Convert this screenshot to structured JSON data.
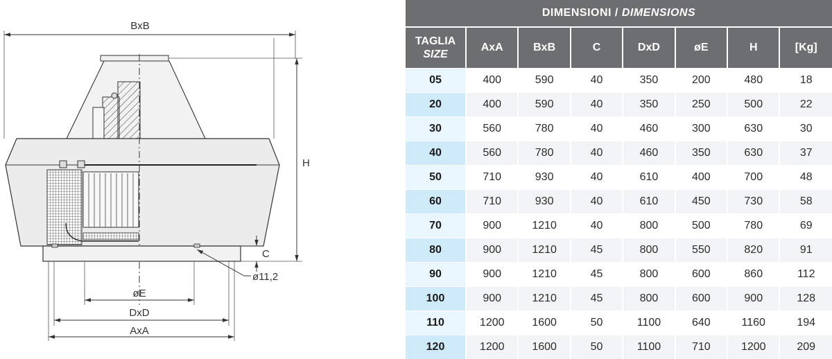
{
  "drawing": {
    "labels": {
      "bxb": "BxB",
      "h": "H",
      "c": "C",
      "hole": "ø11,2",
      "e": "øE",
      "dxd": "DxD",
      "axa": "AxA"
    }
  },
  "table": {
    "title_it": "DIMENSIONI /",
    "title_en": "DIMENSIONS",
    "size_header_it": "TAGLIA",
    "size_header_en": "SIZE",
    "columns": [
      "AxA",
      "BxB",
      "C",
      "DxD",
      "øE",
      "H",
      "[Kg]"
    ],
    "rows": [
      {
        "size": "05",
        "values": [
          "400",
          "590",
          "40",
          "350",
          "200",
          "480",
          "18"
        ]
      },
      {
        "size": "20",
        "values": [
          "400",
          "590",
          "40",
          "350",
          "250",
          "500",
          "22"
        ]
      },
      {
        "size": "30",
        "values": [
          "560",
          "780",
          "40",
          "460",
          "300",
          "630",
          "30"
        ]
      },
      {
        "size": "40",
        "values": [
          "560",
          "780",
          "40",
          "460",
          "350",
          "630",
          "37"
        ]
      },
      {
        "size": "50",
        "values": [
          "710",
          "930",
          "40",
          "610",
          "400",
          "700",
          "48"
        ]
      },
      {
        "size": "60",
        "values": [
          "710",
          "930",
          "40",
          "610",
          "450",
          "730",
          "58"
        ]
      },
      {
        "size": "70",
        "values": [
          "900",
          "1210",
          "40",
          "800",
          "500",
          "780",
          "69"
        ]
      },
      {
        "size": "80",
        "values": [
          "900",
          "1210",
          "45",
          "800",
          "550",
          "820",
          "91"
        ]
      },
      {
        "size": "90",
        "values": [
          "900",
          "1210",
          "45",
          "800",
          "600",
          "860",
          "112"
        ]
      },
      {
        "size": "100",
        "values": [
          "900",
          "1210",
          "45",
          "800",
          "600",
          "900",
          "128"
        ]
      },
      {
        "size": "110",
        "values": [
          "1200",
          "1600",
          "50",
          "1100",
          "640",
          "1160",
          "194"
        ]
      },
      {
        "size": "120",
        "values": [
          "1200",
          "1600",
          "50",
          "1100",
          "710",
          "1200",
          "209"
        ]
      }
    ]
  },
  "colors": {
    "header_bg": "#6d6e70",
    "size_cell_light": "#eaf6fd",
    "size_cell_dark": "#cfeaf9",
    "row_alt": "#f3f4f5"
  }
}
